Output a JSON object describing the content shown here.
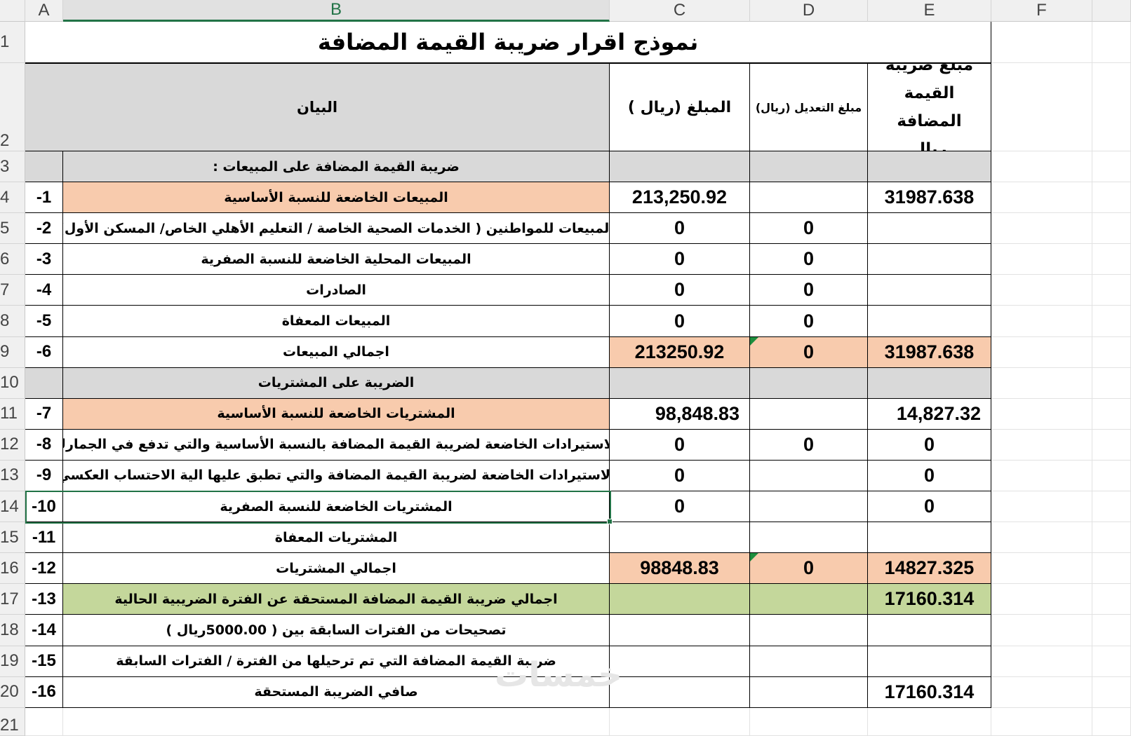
{
  "columns": [
    "A",
    "B",
    "C",
    "D",
    "E",
    "F"
  ],
  "row_numbers": [
    "1",
    "2",
    "3",
    "4",
    "5",
    "6",
    "7",
    "8",
    "9",
    "10",
    "11",
    "12",
    "13",
    "14",
    "15",
    "16",
    "17",
    "18",
    "19",
    "20",
    "21"
  ],
  "title": "نموذج اقرار ضريبة القيمة المضافة",
  "headers": {
    "description": "البيان",
    "amount": "المبلغ (ريال )",
    "adjustment": "مبلغ التعديل (ريال)",
    "vat": "مبلغ ضريبة القيمة المضافة ريال"
  },
  "rows": [
    {
      "num": "",
      "label": "ضريبة القيمة المضافة على المبيعات :",
      "c": "",
      "d": "",
      "e": "",
      "style": "section"
    },
    {
      "num": "1-",
      "label": "المبيعات الخاضعة للنسبة الأساسية",
      "c": "213,250.92",
      "d": "",
      "e": "31987.638",
      "style": "peach-label"
    },
    {
      "num": "2-",
      "label": "المبيعات للمواطنين ( الخدمات الصحية الخاصة / التعليم الأهلي الخاص/ المسكن الأول)",
      "c": "0",
      "d": "0",
      "e": "",
      "style": ""
    },
    {
      "num": "3-",
      "label": "المبيعات المحلية الخاضعة للنسبة الصفرية",
      "c": "0",
      "d": "0",
      "e": "",
      "style": ""
    },
    {
      "num": "4-",
      "label": "الصادرات",
      "c": "0",
      "d": "0",
      "e": "",
      "style": ""
    },
    {
      "num": "5-",
      "label": "المبيعات المعفاة",
      "c": "0",
      "d": "0",
      "e": "",
      "style": ""
    },
    {
      "num": "6-",
      "label": "اجمالي المبيعات",
      "c": "213250.92",
      "d": "0",
      "e": "31987.638",
      "style": "peach-values"
    },
    {
      "num": "",
      "label": "الضريبة على المشتريات",
      "c": "",
      "d": "",
      "e": "",
      "style": "section"
    },
    {
      "num": "7-",
      "label": "المشتريات الخاضعة للنسبة الأساسية",
      "c": "98,848.83",
      "d": "",
      "e": "14,827.32",
      "style": "peach-label"
    },
    {
      "num": "8-",
      "label": "الاستيرادات الخاضعة لضريبة القيمة المضافة بالنسبة الأساسية والتي تدفع في الجمارك",
      "c": "0",
      "d": "0",
      "e": "0",
      "style": ""
    },
    {
      "num": "9-",
      "label": "الاستيرادات الخاضعة لضريبة القيمة المضافة والتي تطبق عليها الية الاحتساب العكسي",
      "c": "0",
      "d": "",
      "e": "0",
      "style": ""
    },
    {
      "num": "10-",
      "label": "المشتريات الخاضعة للنسبة الصفرية",
      "c": "0",
      "d": "",
      "e": "0",
      "style": ""
    },
    {
      "num": "11-",
      "label": "المشتريات المعفاة",
      "c": "",
      "d": "",
      "e": "",
      "style": ""
    },
    {
      "num": "12-",
      "label": "اجمالي المشتريات",
      "c": "98848.83",
      "d": "0",
      "e": "14827.325",
      "style": "peach-values"
    },
    {
      "num": "13-",
      "label": "اجمالي ضريبة القيمة المضافة المستحقة عن الفترة الضريبية الحالية",
      "c": "",
      "d": "",
      "e": "17160.314",
      "style": "green"
    },
    {
      "num": "14-",
      "label": "تصحيحات من الفترات السابقة بين ( 5000.00ريال )",
      "c": "",
      "d": "",
      "e": "",
      "style": ""
    },
    {
      "num": "15-",
      "label": "ضريبة القيمة المضافة التي تم ترحيلها من الفترة / الفترات السابقة",
      "c": "",
      "d": "",
      "e": "",
      "style": ""
    },
    {
      "num": "16-",
      "label": "صافي الضريبة المستحقة",
      "c": "",
      "d": "",
      "e": "17160.314",
      "style": ""
    }
  ],
  "watermark": "خمسات",
  "colors": {
    "section_gray": "#d9d9d9",
    "highlight_peach": "#f8cbad",
    "total_green": "#c4d79b",
    "selection": "#217346",
    "error_indicator": "#1e8e3e"
  }
}
